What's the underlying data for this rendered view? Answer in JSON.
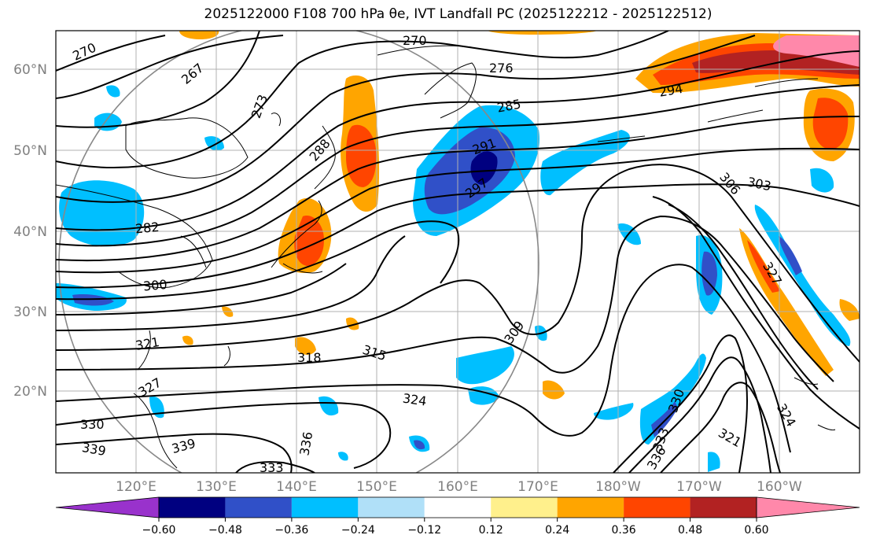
{
  "title": "2025122000 F108 700 hPa θe, IVT Landfall PC (2025122212 - 2025122512)",
  "chart_data": {
    "type": "contour-map",
    "title": "2025122000 F108 700 hPa θe, IVT Landfall PC (2025122212 - 2025122512)",
    "lat_ticks": [
      "60°N",
      "50°N",
      "40°N",
      "30°N",
      "20°N"
    ],
    "lon_ticks": [
      "120°E",
      "130°E",
      "140°E",
      "150°E",
      "160°E",
      "170°E",
      "180°W",
      "170°W",
      "160°W"
    ],
    "contour_field": "700 hPa theta-e (K)",
    "contour_labels": [
      "270",
      "267",
      "273",
      "276",
      "285",
      "288",
      "282",
      "291",
      "294",
      "297",
      "303",
      "306",
      "300",
      "309",
      "315",
      "318",
      "321",
      "324",
      "327",
      "330",
      "333",
      "336",
      "339"
    ],
    "colorbar": {
      "ticks": [
        "−0.60",
        "−0.48",
        "−0.36",
        "−0.24",
        "−0.12",
        "0.12",
        "0.24",
        "0.36",
        "0.48",
        "0.60"
      ],
      "colors": [
        "#9932cc",
        "#000080",
        "#3050c8",
        "#00bfff",
        "#b0e0f8",
        "#ffffff",
        "#fff08c",
        "#ffa500",
        "#ff4500",
        "#b22222",
        "#ff88aa"
      ],
      "extend": "both"
    }
  }
}
